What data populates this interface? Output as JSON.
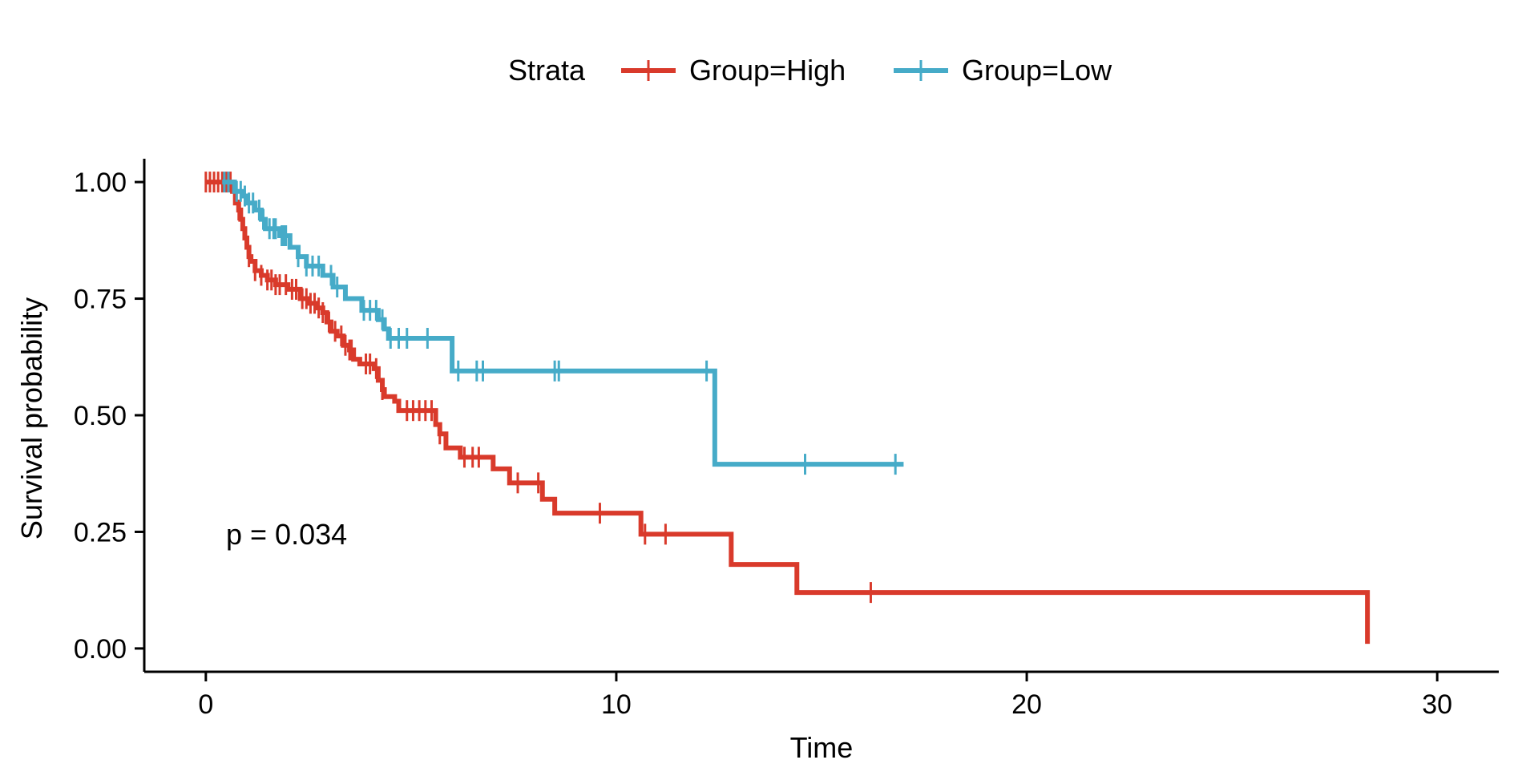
{
  "chart_data": {
    "type": "line",
    "xlabel": "Time",
    "ylabel": "Survival probability",
    "xlim": [
      -1.5,
      31.5
    ],
    "ylim": [
      -0.05,
      1.05
    ],
    "x_ticks": [
      0,
      10,
      20,
      30
    ],
    "x_tick_labels": [
      "0",
      "10",
      "20",
      "30"
    ],
    "y_ticks": [
      0,
      0.25,
      0.5,
      0.75,
      1
    ],
    "y_tick_labels": [
      "0.00",
      "0.25",
      "0.50",
      "0.75",
      "1.00"
    ],
    "grid": false,
    "legend": {
      "title": "Strata",
      "placement": "top"
    },
    "annotation": "p = 0.034",
    "series": [
      {
        "name": "Group=High",
        "color": "#d93a2b",
        "steps": [
          [
            0,
            1.0
          ],
          [
            0.65,
            0.98
          ],
          [
            0.72,
            0.955
          ],
          [
            0.8,
            0.94
          ],
          [
            0.85,
            0.92
          ],
          [
            0.9,
            0.9
          ],
          [
            0.95,
            0.88
          ],
          [
            1.0,
            0.86
          ],
          [
            1.05,
            0.84
          ],
          [
            1.1,
            0.83
          ],
          [
            1.2,
            0.81
          ],
          [
            1.35,
            0.8
          ],
          [
            1.5,
            0.79
          ],
          [
            1.7,
            0.78
          ],
          [
            2.0,
            0.77
          ],
          [
            2.3,
            0.75
          ],
          [
            2.5,
            0.74
          ],
          [
            2.7,
            0.73
          ],
          [
            2.85,
            0.72
          ],
          [
            2.95,
            0.7
          ],
          [
            3.05,
            0.68
          ],
          [
            3.2,
            0.67
          ],
          [
            3.35,
            0.65
          ],
          [
            3.5,
            0.64
          ],
          [
            3.6,
            0.62
          ],
          [
            3.75,
            0.61
          ],
          [
            4.1,
            0.6
          ],
          [
            4.2,
            0.575
          ],
          [
            4.3,
            0.555
          ],
          [
            4.35,
            0.54
          ],
          [
            4.6,
            0.53
          ],
          [
            4.7,
            0.51
          ],
          [
            5.6,
            0.48
          ],
          [
            5.7,
            0.46
          ],
          [
            5.85,
            0.43
          ],
          [
            6.2,
            0.41
          ],
          [
            7.0,
            0.385
          ],
          [
            7.4,
            0.355
          ],
          [
            8.2,
            0.32
          ],
          [
            8.5,
            0.29
          ],
          [
            10.6,
            0.245
          ],
          [
            12.8,
            0.18
          ],
          [
            14.4,
            0.12
          ],
          [
            28.3,
            0.01
          ]
        ],
        "end_x": 28.3,
        "censor_x": [
          0,
          0.1,
          0.2,
          0.3,
          0.4,
          0.5,
          0.6,
          0.7,
          0.8,
          1.05,
          1.2,
          1.35,
          1.5,
          1.6,
          1.7,
          1.8,
          1.95,
          2.1,
          2.2,
          2.35,
          2.45,
          2.55,
          2.65,
          2.75,
          2.85,
          3.0,
          3.15,
          3.3,
          3.4,
          3.5,
          3.55,
          3.9,
          4.0,
          4.15,
          4.3,
          4.9,
          5.05,
          5.2,
          5.35,
          5.5,
          5.7,
          6.3,
          6.5,
          6.65,
          7.6,
          8.1,
          9.6,
          10.7,
          11.2,
          16.2
        ]
      },
      {
        "name": "Group=Low",
        "color": "#46abc8",
        "steps": [
          [
            0.4,
            1.0
          ],
          [
            0.7,
            0.98
          ],
          [
            0.9,
            0.97
          ],
          [
            1.0,
            0.955
          ],
          [
            1.2,
            0.94
          ],
          [
            1.35,
            0.92
          ],
          [
            1.45,
            0.9
          ],
          [
            1.8,
            0.885
          ],
          [
            2.05,
            0.86
          ],
          [
            2.25,
            0.84
          ],
          [
            2.45,
            0.82
          ],
          [
            2.85,
            0.8
          ],
          [
            3.1,
            0.775
          ],
          [
            3.4,
            0.75
          ],
          [
            3.8,
            0.725
          ],
          [
            4.2,
            0.705
          ],
          [
            4.35,
            0.685
          ],
          [
            4.45,
            0.665
          ],
          [
            6.0,
            0.595
          ],
          [
            12.4,
            0.395
          ]
        ],
        "end_x": 17.0,
        "censor_x": [
          0.45,
          0.55,
          0.75,
          0.85,
          0.95,
          1.05,
          1.15,
          1.3,
          1.4,
          1.55,
          1.65,
          1.7,
          1.85,
          1.9,
          1.95,
          2.25,
          2.45,
          2.6,
          2.75,
          3.05,
          3.2,
          3.85,
          4.0,
          4.15,
          4.3,
          4.5,
          4.7,
          4.9,
          5.4,
          6.15,
          6.6,
          6.75,
          8.5,
          8.6,
          12.2,
          14.6,
          16.8
        ]
      }
    ]
  }
}
